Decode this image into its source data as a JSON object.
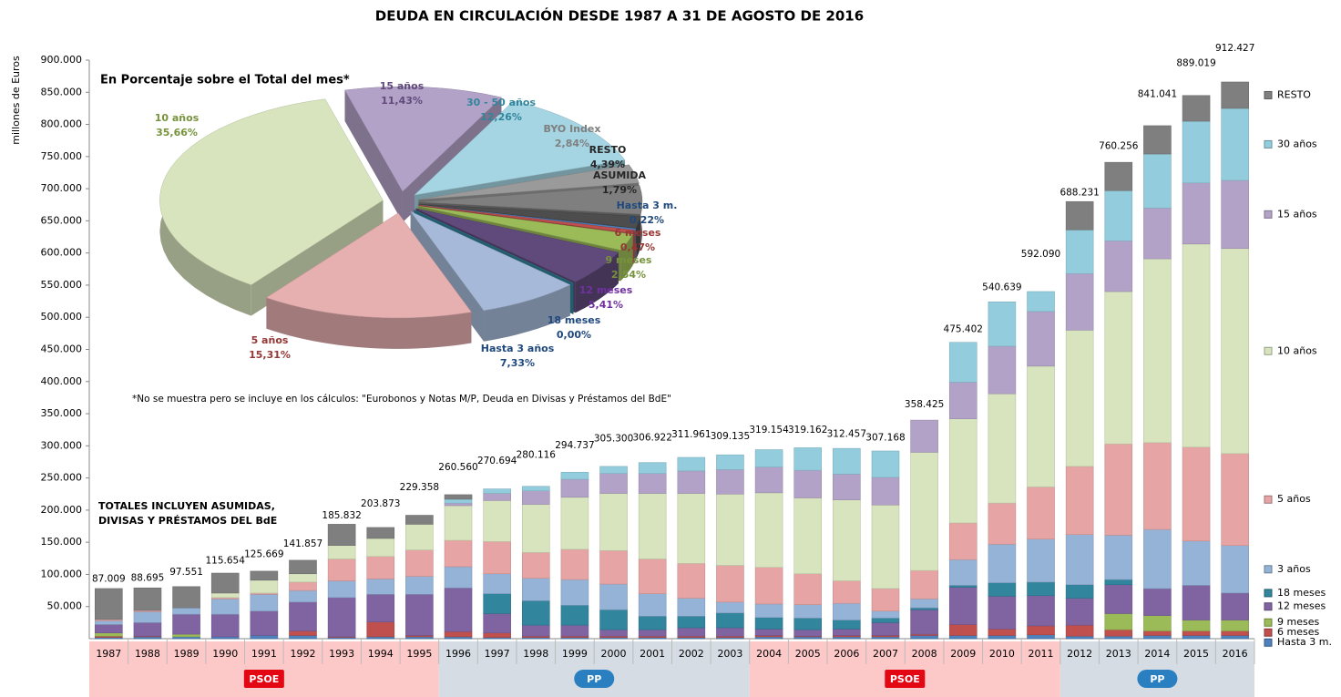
{
  "chart_data": [
    {
      "type": "bar",
      "stacked": true,
      "title": "DEUDA EN CIRCULACIÓN DESDE 1987 A 31 DE AGOSTO DE 2016",
      "ylabel": "millones de Euros",
      "categories": [
        "1987",
        "1988",
        "1989",
        "1990",
        "1991",
        "1992",
        "1993",
        "1994",
        "1995",
        "1996",
        "1997",
        "1998",
        "1999",
        "2000",
        "2001",
        "2002",
        "2003",
        "2004",
        "2005",
        "2006",
        "2007",
        "2008",
        "2009",
        "2010",
        "2011",
        "2012",
        "2013",
        "2014",
        "2015",
        "2016"
      ],
      "ylim": [
        0,
        900000
      ],
      "yticks": [
        {
          "value": 50000,
          "label": "50.000"
        },
        {
          "value": 100000,
          "label": "100.000"
        },
        {
          "value": 150000,
          "label": "150.000"
        },
        {
          "value": 200000,
          "label": "200.000"
        },
        {
          "value": 250000,
          "label": "250.000"
        },
        {
          "value": 300000,
          "label": "300.000"
        },
        {
          "value": 350000,
          "label": "350.000"
        },
        {
          "value": 400000,
          "label": "400.000"
        },
        {
          "value": 450000,
          "label": "450.000"
        },
        {
          "value": 500000,
          "label": "500.000"
        },
        {
          "value": 550000,
          "label": "550.000"
        },
        {
          "value": 600000,
          "label": "600.000"
        },
        {
          "value": 650000,
          "label": "650.000"
        },
        {
          "value": 700000,
          "label": "700.000"
        },
        {
          "value": 750000,
          "label": "750.000"
        },
        {
          "value": 800000,
          "label": "800.000"
        },
        {
          "value": 850000,
          "label": "850.000"
        },
        {
          "value": 900000,
          "label": "900.000"
        }
      ],
      "grid": false,
      "legend": "right",
      "series": [
        {
          "name": "Hasta 3 m.",
          "color": "#4f81bd",
          "values": [
            2000,
            3000,
            3000,
            3000,
            5000,
            5000,
            2000,
            3000,
            3000,
            3000,
            2000,
            2000,
            2000,
            2000,
            2000,
            2000,
            2000,
            3000,
            3000,
            3000,
            3000,
            5000,
            5000,
            5000,
            6000,
            4000,
            4000,
            5000,
            5000,
            5000
          ]
        },
        {
          "name": "6 meses",
          "color": "#c0504d",
          "values": [
            2000,
            1000,
            0,
            0,
            0,
            7000,
            1000,
            23000,
            2000,
            8000,
            7000,
            2000,
            2000,
            2000,
            2000,
            2000,
            2000,
            2000,
            1000,
            2000,
            2000,
            2000,
            17000,
            10000,
            14000,
            17000,
            10000,
            7000,
            7000,
            7000
          ]
        },
        {
          "name": "9 meses",
          "color": "#9bbb59",
          "values": [
            5000,
            0,
            4000,
            0,
            0,
            0,
            0,
            0,
            0,
            0,
            0,
            0,
            0,
            0,
            0,
            0,
            0,
            0,
            0,
            0,
            0,
            0,
            0,
            0,
            0,
            0,
            25000,
            24000,
            17000,
            17000
          ]
        },
        {
          "name": "12 meses",
          "color": "#8064a2",
          "values": [
            13000,
            21000,
            31000,
            35000,
            38000,
            45000,
            61000,
            43000,
            64000,
            68000,
            30000,
            17000,
            17000,
            10000,
            10000,
            13000,
            13000,
            10000,
            10000,
            10000,
            20000,
            38000,
            58000,
            51000,
            47000,
            42000,
            45000,
            42000,
            54000,
            42000
          ]
        },
        {
          "name": "18 meses",
          "color": "#31859c",
          "values": [
            0,
            0,
            0,
            0,
            0,
            0,
            0,
            0,
            0,
            0,
            31000,
            38000,
            31000,
            31000,
            21000,
            18000,
            23000,
            18000,
            18000,
            14000,
            7000,
            3000,
            3000,
            21000,
            21000,
            21000,
            8000,
            0,
            0,
            0
          ]
        },
        {
          "name": "3 años",
          "color": "#95b3d7",
          "values": [
            6000,
            17000,
            10000,
            24000,
            26000,
            18000,
            26000,
            24000,
            28000,
            33000,
            31000,
            35000,
            40000,
            40000,
            35000,
            28000,
            17000,
            21000,
            21000,
            26000,
            11000,
            14000,
            40000,
            60000,
            67000,
            78000,
            69000,
            92000,
            69000,
            74000
          ]
        },
        {
          "name": "5 años",
          "color": "#e6a5a4",
          "values": [
            2000,
            2000,
            0,
            2000,
            2000,
            13000,
            34000,
            35000,
            41000,
            41000,
            50000,
            40000,
            47000,
            52000,
            54000,
            54000,
            57000,
            57000,
            48000,
            35000,
            35000,
            44000,
            57000,
            64000,
            81000,
            106000,
            142000,
            135000,
            146000,
            143000
          ]
        },
        {
          "name": "10 años",
          "color": "#d7e4bd",
          "values": [
            0,
            0,
            0,
            7000,
            20000,
            13000,
            21000,
            28000,
            40000,
            54000,
            64000,
            75000,
            81000,
            89000,
            102000,
            109000,
            111000,
            116000,
            118000,
            126000,
            130000,
            184000,
            162000,
            170000,
            188000,
            212000,
            237000,
            286000,
            316000,
            319000
          ]
        },
        {
          "name": "15 años",
          "color": "#b3a2c7",
          "values": [
            0,
            0,
            0,
            0,
            0,
            0,
            0,
            0,
            0,
            4000,
            11000,
            21000,
            28000,
            31000,
            31000,
            35000,
            38000,
            40000,
            43000,
            40000,
            43000,
            50000,
            57000,
            74000,
            85000,
            88000,
            79000,
            79000,
            95000,
            106000
          ]
        },
        {
          "name": "30 años",
          "color": "#93cddd",
          "values": [
            0,
            0,
            0,
            0,
            0,
            0,
            0,
            0,
            0,
            6000,
            7000,
            7000,
            11000,
            11000,
            17000,
            21000,
            23000,
            27000,
            35000,
            40000,
            41000,
            0,
            62000,
            69000,
            31000,
            68000,
            78000,
            84000,
            96000,
            112000
          ]
        },
        {
          "name": "RESTO",
          "color": "#7f7f7f",
          "values": [
            48000,
            35000,
            33000,
            31000,
            14000,
            21000,
            33000,
            17000,
            14000,
            7000,
            0,
            0,
            0,
            0,
            0,
            0,
            0,
            0,
            0,
            0,
            0,
            0,
            0,
            0,
            0,
            44000,
            44000,
            44000,
            40000,
            41000
          ]
        }
      ],
      "totals": {
        "values": [
          87009,
          88695,
          97551,
          115654,
          125669,
          141857,
          185832,
          203873,
          229358,
          260560,
          270694,
          280116,
          294737,
          305300,
          306922,
          311961,
          309135,
          319154,
          319162,
          312457,
          307168,
          358425,
          475402,
          540639,
          592090,
          688231,
          760256,
          841041,
          889019,
          912427
        ],
        "value_labels": [
          "87.009",
          "88.695",
          "97.551",
          "115.654",
          "125.669",
          "141.857",
          "185.832",
          "203.873",
          "229.358",
          "260.560",
          "270.694",
          "280.116",
          "294.737",
          "305.300",
          "306.922",
          "311.961",
          "309.135",
          "319.154",
          "319.162",
          "312.457",
          "307.168",
          "358.425",
          "475.402",
          "540.639",
          "592.090",
          "688.231",
          "760.256",
          "841.041",
          "889.019",
          "912.427"
        ]
      },
      "annotations": [
        "TOTALES INCLUYEN ASUMIDAS,",
        "DIVISAS Y PRÉSTAMOS  DEL BdE"
      ],
      "periods": [
        {
          "label": "PSOE",
          "start": "1987",
          "end": "1995",
          "color": "#fcc8c8",
          "badge": "#e30613"
        },
        {
          "label": "PP",
          "start": "1996",
          "end": "2003",
          "color": "#d5dce4",
          "badge": "#2a7fc0"
        },
        {
          "label": "PSOE",
          "start": "2004",
          "end": "2011",
          "color": "#fcc8c8",
          "badge": "#e30613"
        },
        {
          "label": "PP",
          "start": "2012",
          "end": "2016",
          "color": "#d5dce4",
          "badge": "#2a7fc0"
        }
      ]
    },
    {
      "type": "pie",
      "title": "En Porcentaje sobre el Total del mes*",
      "note": "*No se muestra pero se incluye en los cálculos: \"Eurobonos y Notas  M/P, Deuda en Divisas y Préstamos del BdE\"",
      "categories": [
        "15 años",
        "30 - 50 años",
        "BYO Index",
        "RESTO",
        "ASUMIDA",
        "Hasta 3 m.",
        "6 meses",
        "9 meses",
        "12 meses",
        "18 meses",
        "Hasta 3 años",
        "5 años",
        "10 años"
      ],
      "values": [
        11.43,
        12.26,
        2.84,
        4.39,
        1.79,
        0.22,
        0.47,
        2.54,
        5.41,
        0,
        7.33,
        15.31,
        35.66
      ],
      "value_labels": [
        "11,43%",
        "12,26%",
        "2,84%",
        "4,39%",
        "1,79%",
        "0,22%",
        "0,47%",
        "2,54%",
        "5,41%",
        "0,00%",
        "7,33%",
        "15,31%",
        "35,66%"
      ],
      "colors": [
        "#b3a2c7",
        "#a5d5e3",
        "#9a9a9a",
        "#7f7f7f",
        "#4d4d4d",
        "#4f81bd",
        "#c0504d",
        "#9bbb59",
        "#604a7b",
        "#31859c",
        "#a6b9d8",
        "#e6b0b0",
        "#d7e4bd"
      ],
      "label_colors": [
        "#604a7b",
        "#31859c",
        "#7f7f7f",
        "#262626",
        "#262626",
        "#1f497d",
        "#953735",
        "#77933c",
        "#7030a0",
        "#1f497d",
        "#1f497d",
        "#953735",
        "#77933c"
      ]
    }
  ]
}
